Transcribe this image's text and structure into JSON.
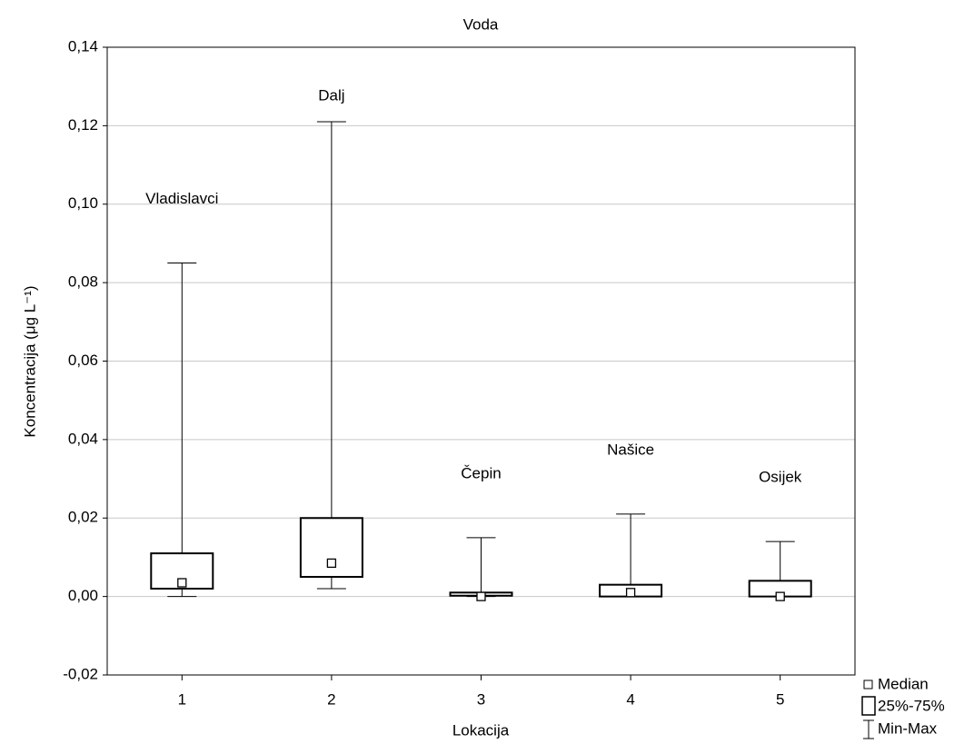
{
  "chart_data": {
    "type": "box",
    "title": "Voda",
    "x_label": "Lokacija",
    "y_label": "Koncentracija (μg L⁻¹)",
    "categories": [
      "1",
      "2",
      "3",
      "4",
      "5"
    ],
    "annotations": [
      "Vladislavci",
      "Dalj",
      "Čepin",
      "Našice",
      "Osijek"
    ],
    "min": [
      0,
      0.002,
      0,
      0,
      0
    ],
    "q1": [
      0.002,
      0.005,
      0.0002,
      0,
      0
    ],
    "median": [
      0.0035,
      0.0085,
      0,
      0.001,
      0
    ],
    "q3": [
      0.011,
      0.02,
      0.001,
      0.003,
      0.004
    ],
    "max": [
      0.085,
      0.121,
      0.015,
      0.021,
      0.014
    ],
    "ylim": [
      -0.02,
      0.14
    ],
    "yticks": [
      {
        "value": -0.02,
        "label": "-0,02"
      },
      {
        "value": 0,
        "label": "0,00"
      },
      {
        "value": 0.02,
        "label": "0,02"
      },
      {
        "value": 0.04,
        "label": "0,04"
      },
      {
        "value": 0.06,
        "label": "0,06"
      },
      {
        "value": 0.08,
        "label": "0,08"
      },
      {
        "value": 0.1,
        "label": "0,10"
      },
      {
        "value": 0.12,
        "label": "0,12"
      },
      {
        "value": 0.14,
        "label": "0,14"
      }
    ],
    "grid": true,
    "legend": [
      "Median",
      "25%-75%",
      "Min-Max"
    ]
  }
}
